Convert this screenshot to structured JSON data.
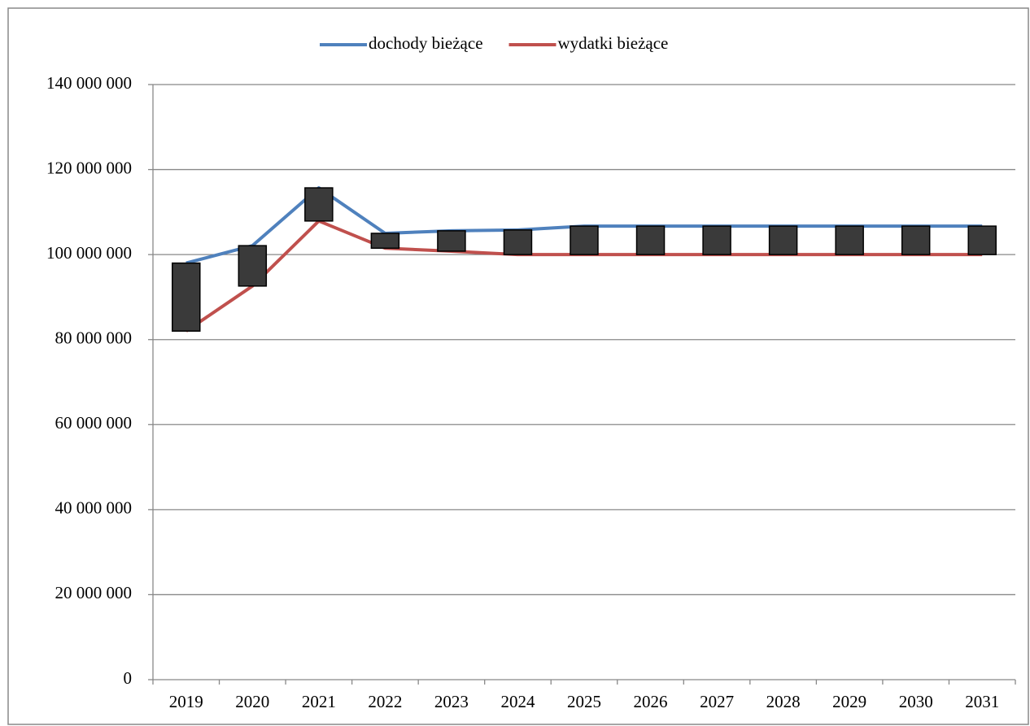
{
  "chart_data": {
    "type": "line",
    "categories": [
      "2019",
      "2020",
      "2021",
      "2022",
      "2023",
      "2024",
      "2025",
      "2026",
      "2027",
      "2028",
      "2029",
      "2030",
      "2031"
    ],
    "series": [
      {
        "name": "dochody bieżące",
        "color": "#4f81bd",
        "values": [
          98000000,
          102100000,
          115700000,
          105000000,
          105600000,
          105800000,
          106700000,
          106700000,
          106700000,
          106700000,
          106700000,
          106700000,
          106700000
        ]
      },
      {
        "name": "wydatki bieżące",
        "color": "#c0504d",
        "values": [
          82000000,
          92600000,
          107900000,
          101500000,
          100800000,
          100000000,
          100000000,
          100000000,
          100000000,
          100000000,
          100000000,
          100000000,
          100000000
        ]
      }
    ],
    "up_down_bars": true,
    "bar_color": "#3a3a3a",
    "ylim": [
      0,
      140000000
    ],
    "yticks": [
      0,
      {
        "value": 20000000,
        "label": "20 000 000"
      },
      {
        "value": 40000000,
        "label": "40 000 000"
      },
      {
        "value": 60000000,
        "label": "60 000 000"
      },
      {
        "value": 80000000,
        "label": "80 000 000"
      },
      {
        "value": 100000000,
        "label": "100 000 000"
      },
      {
        "value": 120000000,
        "label": "120 000 000"
      },
      {
        "value": 140000000,
        "label": "140 000 000"
      }
    ],
    "grid": true,
    "legend": "top"
  }
}
